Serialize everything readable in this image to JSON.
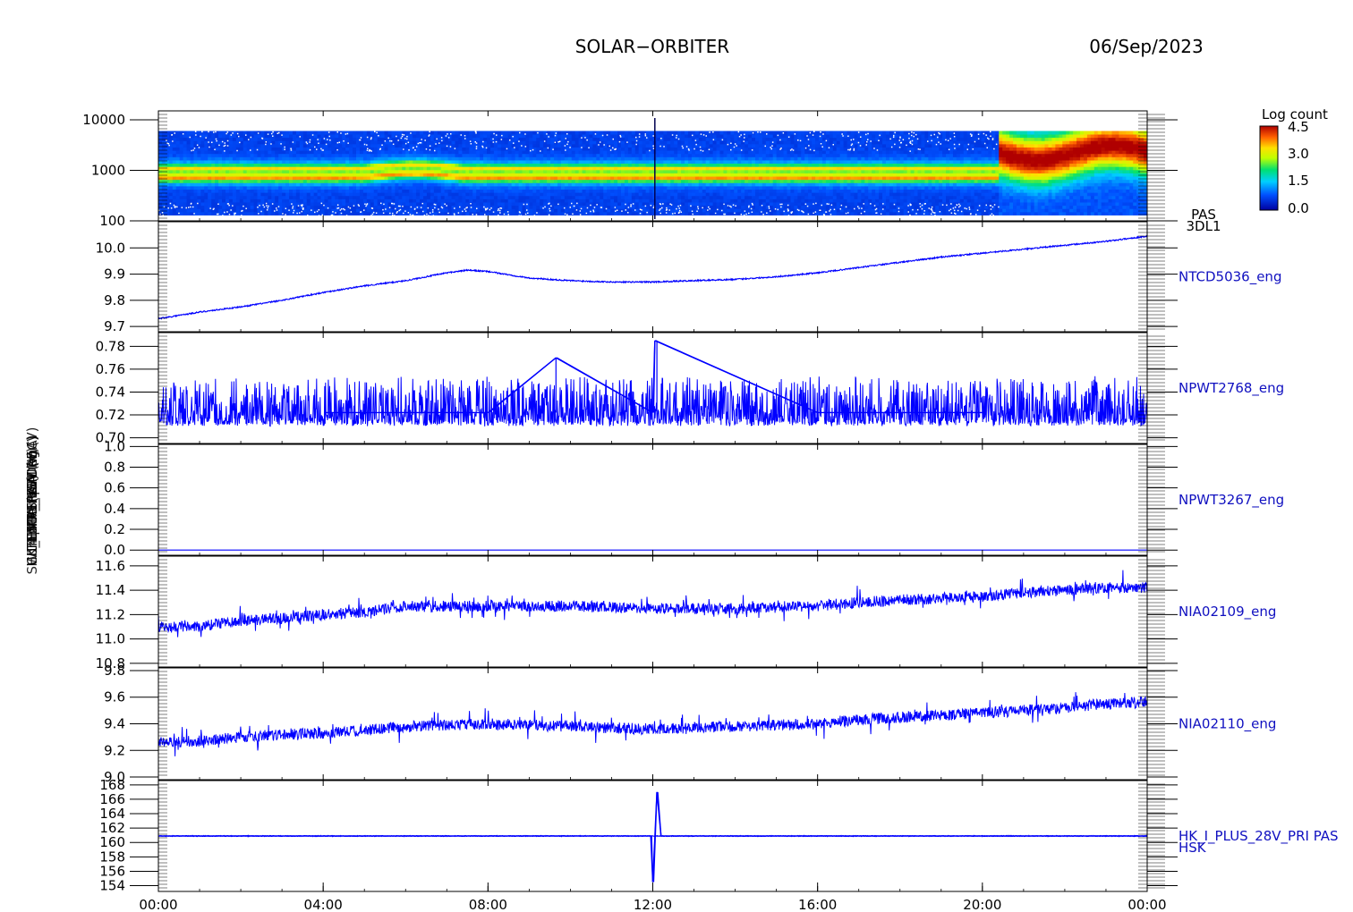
{
  "header": {
    "mission": "SOLAR−ORBITER",
    "date": "06/Sep/2023"
  },
  "colorbar": {
    "title": "Log count",
    "ticks": [
      "4.5",
      "3.0",
      "1.5",
      "0.0"
    ],
    "range": [
      0.0,
      4.5
    ]
  },
  "colors": {
    "trace": "#0000ff",
    "label": "#1010c0",
    "axis": "#000000"
  },
  "x_axis": {
    "range": [
      "00:00",
      "24:00"
    ],
    "ticks": [
      "00:00",
      "04:00",
      "08:00",
      "12:00",
      "16:00",
      "20:00",
      "00:00"
    ]
  },
  "overlapping_ylabels": [
    "PAS(eV)",
    "Comp Temp (DegC)",
    "SW TEMPERATURE (V)",
    "TEMP FPGA (V)",
    "14.5 V_PRIM (V)",
    "HK_IMON_15V (mA)"
  ],
  "chart_data": [
    {
      "type": "heatmap",
      "label_lines": [
        "PAS",
        "3DL1"
      ],
      "y_scale": "log",
      "ylim": [
        100,
        15000
      ],
      "ytick_labels": [
        "10000",
        "1000",
        "100"
      ],
      "ytick_values": [
        10000,
        1000,
        100
      ],
      "z_label": "Log count",
      "zlim": [
        0,
        4.5
      ],
      "features": [
        {
          "from_hour": 0.0,
          "to_hour": 20.4,
          "description": "two narrow bands near 700 and 1100 eV, intensity about 2.5"
        },
        {
          "from_hour": 20.4,
          "to_hour": 24.0,
          "description": "broad high-count region 1000-6000 eV, intensity about 4.5"
        }
      ]
    },
    {
      "type": "line",
      "label": "NTCD5036_eng",
      "ylim": [
        9.68,
        10.1
      ],
      "ytick_labels": [
        "10.0",
        "9.9",
        "9.8",
        "9.7"
      ],
      "ytick_values": [
        10.0,
        9.9,
        9.8,
        9.7
      ],
      "x": [
        0,
        1,
        2,
        3,
        4,
        5,
        6,
        7,
        7.5,
        8,
        9,
        10,
        11,
        12,
        13,
        14,
        15,
        16,
        17,
        18,
        19,
        20,
        21,
        22,
        23,
        24
      ],
      "y": [
        9.73,
        9.755,
        9.775,
        9.8,
        9.83,
        9.855,
        9.875,
        9.905,
        9.915,
        9.91,
        9.885,
        9.875,
        9.87,
        9.87,
        9.875,
        9.88,
        9.89,
        9.905,
        9.925,
        9.945,
        9.965,
        9.98,
        9.995,
        10.01,
        10.025,
        10.045
      ]
    },
    {
      "type": "line",
      "label": "NPWT2768_eng",
      "ylim": [
        0.695,
        0.792
      ],
      "ytick_labels": [
        "0.78",
        "0.76",
        "0.74",
        "0.72",
        "0.70"
      ],
      "ytick_values": [
        0.78,
        0.76,
        0.74,
        0.72,
        0.7
      ],
      "x": [
        0,
        4,
        8,
        9.65,
        12,
        12.05,
        16,
        20,
        24
      ],
      "y": [
        0.722,
        0.722,
        0.722,
        0.77,
        0.722,
        0.785,
        0.722,
        0.722,
        0.722
      ],
      "noise_range": [
        0.712,
        0.752
      ]
    },
    {
      "type": "line",
      "label": "NPWT3267_eng",
      "ylim": [
        -0.05,
        1.02
      ],
      "ytick_labels": [
        "1.0",
        "0.8",
        "0.6",
        "0.4",
        "0.2",
        "0.0"
      ],
      "ytick_values": [
        1.0,
        0.8,
        0.6,
        0.4,
        0.2,
        0.0
      ],
      "x": [
        0,
        24
      ],
      "y": [
        0.0,
        0.0
      ]
    },
    {
      "type": "line",
      "label": "NIA02109_eng",
      "ylim": [
        10.77,
        11.68
      ],
      "ytick_labels": [
        "11.6",
        "11.4",
        "11.2",
        "11.0",
        "10.8"
      ],
      "ytick_values": [
        11.6,
        11.4,
        11.2,
        11.0,
        10.8
      ],
      "x": [
        0,
        1,
        2,
        3,
        4,
        5,
        6,
        8,
        10,
        12,
        14,
        16,
        17,
        18,
        20,
        21,
        22,
        23,
        24
      ],
      "y": [
        11.1,
        11.1,
        11.15,
        11.17,
        11.2,
        11.22,
        11.27,
        11.27,
        11.27,
        11.25,
        11.25,
        11.27,
        11.3,
        11.32,
        11.35,
        11.38,
        11.4,
        11.42,
        11.42
      ]
    },
    {
      "type": "line",
      "label": "NIA02110_eng",
      "ylim": [
        8.98,
        9.82
      ],
      "ytick_labels": [
        "9.8",
        "9.6",
        "9.4",
        "9.2",
        "9.0"
      ],
      "ytick_values": [
        9.8,
        9.6,
        9.4,
        9.2,
        9.0
      ],
      "x": [
        0,
        1,
        2,
        3,
        4,
        5,
        6,
        8,
        10,
        12,
        14,
        16,
        17,
        18,
        20,
        21,
        22,
        23,
        24
      ],
      "y": [
        9.26,
        9.27,
        9.3,
        9.32,
        9.33,
        9.35,
        9.38,
        9.4,
        9.38,
        9.36,
        9.38,
        9.4,
        9.43,
        9.45,
        9.48,
        9.5,
        9.52,
        9.55,
        9.56
      ]
    },
    {
      "type": "line",
      "label_lines": [
        "HK_I_PLUS_28V_PRI PAS",
        "HSK"
      ],
      "ylim": [
        153.2,
        168.6
      ],
      "ytick_labels": [
        "168",
        "166",
        "164",
        "162",
        "160",
        "158",
        "156",
        "154"
      ],
      "ytick_values": [
        168,
        166,
        164,
        162,
        160,
        158,
        156,
        154
      ],
      "x": [
        0,
        11.95,
        12.0,
        12.1,
        12.2,
        24
      ],
      "y": [
        160.9,
        160.9,
        154.5,
        167.0,
        160.9,
        160.9
      ]
    }
  ]
}
